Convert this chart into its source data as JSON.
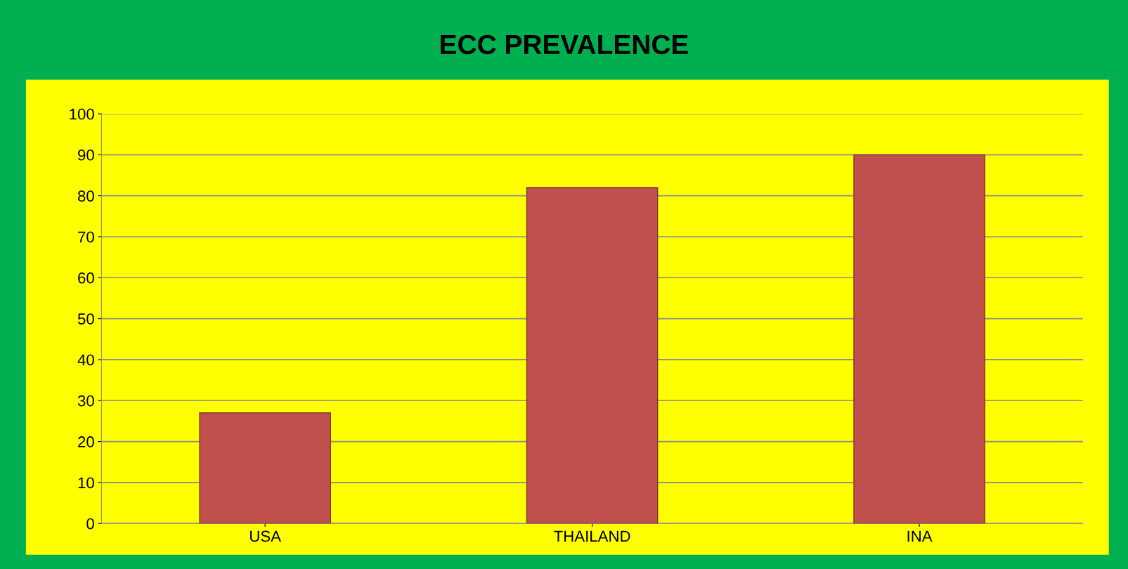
{
  "chart_data": {
    "type": "bar",
    "title": "ECC PREVALENCE",
    "categories": [
      "USA",
      "THAILAND",
      "INA"
    ],
    "values": [
      27,
      82,
      90
    ],
    "color": "#c0504d",
    "ylim": [
      0,
      100
    ],
    "yticks": [
      0,
      10,
      20,
      30,
      40,
      50,
      60,
      70,
      80,
      90,
      100
    ],
    "grid": "y"
  }
}
